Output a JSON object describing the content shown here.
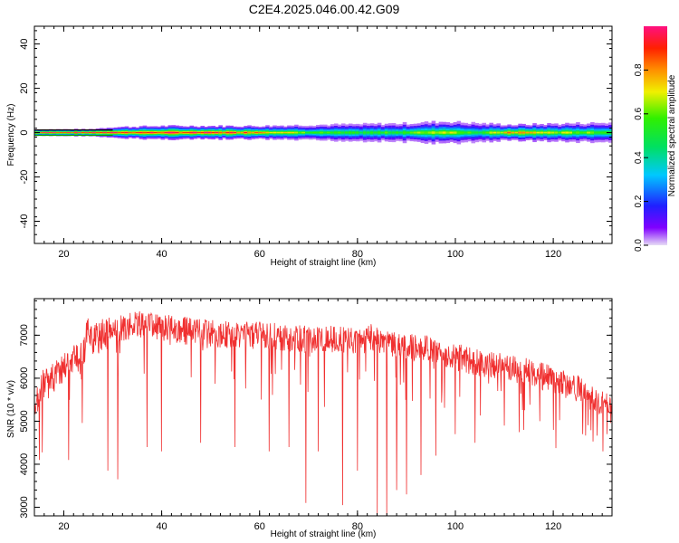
{
  "title": "C2E4.2025.046.00.42.G09",
  "colors": {
    "snr_line": "#f03030",
    "frame": "#000000"
  },
  "chart_data": [
    {
      "type": "heatmap",
      "title": "C2E4.2025.046.00.42.G09",
      "xlabel": "Height of straight line (km)",
      "ylabel": "Frequency (Hz)",
      "xlim": [
        14,
        132
      ],
      "ylim": [
        -50,
        48
      ],
      "xticks": [
        "20",
        "40",
        "60",
        "80",
        "100",
        "120"
      ],
      "yticks": [
        "40",
        "20",
        "0",
        "-20",
        "-40"
      ],
      "colorbar": {
        "label": "Normalized spectral amplitude",
        "ticks": [
          "0.0",
          "0.2",
          "0.4",
          "0.6",
          "0.8"
        ],
        "range": [
          0,
          1
        ],
        "colormap": "rainbow (purple-blue-cyan-green-yellow-orange-red-magenta)"
      },
      "band_profile": [
        {
          "x": 15,
          "halfwidth": 1.5,
          "peak": 1.0
        },
        {
          "x": 25,
          "halfwidth": 1.5,
          "peak": 1.0
        },
        {
          "x": 30,
          "halfwidth": 2.5,
          "peak": 0.95
        },
        {
          "x": 40,
          "halfwidth": 3.0,
          "peak": 0.95
        },
        {
          "x": 50,
          "halfwidth": 3.0,
          "peak": 0.95
        },
        {
          "x": 60,
          "halfwidth": 3.0,
          "peak": 0.9
        },
        {
          "x": 70,
          "halfwidth": 3.5,
          "peak": 0.6
        },
        {
          "x": 80,
          "halfwidth": 3.8,
          "peak": 0.55
        },
        {
          "x": 90,
          "halfwidth": 4.2,
          "peak": 0.6
        },
        {
          "x": 98,
          "halfwidth": 5.0,
          "peak": 0.75
        },
        {
          "x": 105,
          "halfwidth": 4.2,
          "peak": 0.55
        },
        {
          "x": 112,
          "halfwidth": 3.5,
          "peak": 0.85
        },
        {
          "x": 120,
          "halfwidth": 4.0,
          "peak": 0.7
        },
        {
          "x": 132,
          "halfwidth": 4.5,
          "peak": 0.6
        }
      ]
    },
    {
      "type": "line",
      "xlabel": "Height of straight line (km)",
      "ylabel": "SNR (10 * v/v)",
      "xlim": [
        14,
        132
      ],
      "ylim": [
        2800,
        7850
      ],
      "xticks": [
        "20",
        "40",
        "60",
        "80",
        "100",
        "120"
      ],
      "yticks": [
        "7000",
        "6000",
        "5000",
        "4000",
        "3000"
      ],
      "series": [
        {
          "color": "#f03030",
          "x": [
            14,
            15,
            16,
            17,
            18,
            20,
            22,
            24,
            25,
            26,
            28,
            30,
            32,
            35,
            38,
            40,
            45,
            50,
            55,
            60,
            65,
            70,
            75,
            80,
            83,
            85,
            90,
            95,
            100,
            105,
            110,
            115,
            120,
            125,
            130,
            132
          ],
          "y": [
            5000,
            5700,
            5900,
            6100,
            6000,
            6300,
            6400,
            6500,
            7200,
            6900,
            7000,
            7100,
            7150,
            7250,
            7200,
            7200,
            7100,
            7050,
            7000,
            7000,
            6950,
            6900,
            6900,
            6850,
            6950,
            6850,
            6750,
            6650,
            6500,
            6350,
            6250,
            6150,
            5950,
            5750,
            5400,
            5250
          ],
          "dips": [
            {
              "x": 15,
              "y": 4100
            },
            {
              "x": 21,
              "y": 4100
            },
            {
              "x": 29,
              "y": 3850
            },
            {
              "x": 31,
              "y": 3650
            },
            {
              "x": 37,
              "y": 4400
            },
            {
              "x": 40,
              "y": 4300
            },
            {
              "x": 48,
              "y": 4500
            },
            {
              "x": 55,
              "y": 4400
            },
            {
              "x": 62,
              "y": 4300
            },
            {
              "x": 66,
              "y": 4400
            },
            {
              "x": 69.5,
              "y": 3100
            },
            {
              "x": 72,
              "y": 4300
            },
            {
              "x": 77,
              "y": 3050
            },
            {
              "x": 80,
              "y": 3850
            },
            {
              "x": 84,
              "y": 2800
            },
            {
              "x": 86,
              "y": 2800
            },
            {
              "x": 88,
              "y": 3400
            },
            {
              "x": 90,
              "y": 3300
            },
            {
              "x": 93,
              "y": 3750
            },
            {
              "x": 96,
              "y": 4200
            },
            {
              "x": 100,
              "y": 4700
            },
            {
              "x": 104,
              "y": 4500
            },
            {
              "x": 110,
              "y": 4900
            },
            {
              "x": 114,
              "y": 4800
            },
            {
              "x": 120,
              "y": 4800
            },
            {
              "x": 126,
              "y": 4700
            },
            {
              "x": 131,
              "y": 4700
            }
          ]
        }
      ]
    }
  ]
}
